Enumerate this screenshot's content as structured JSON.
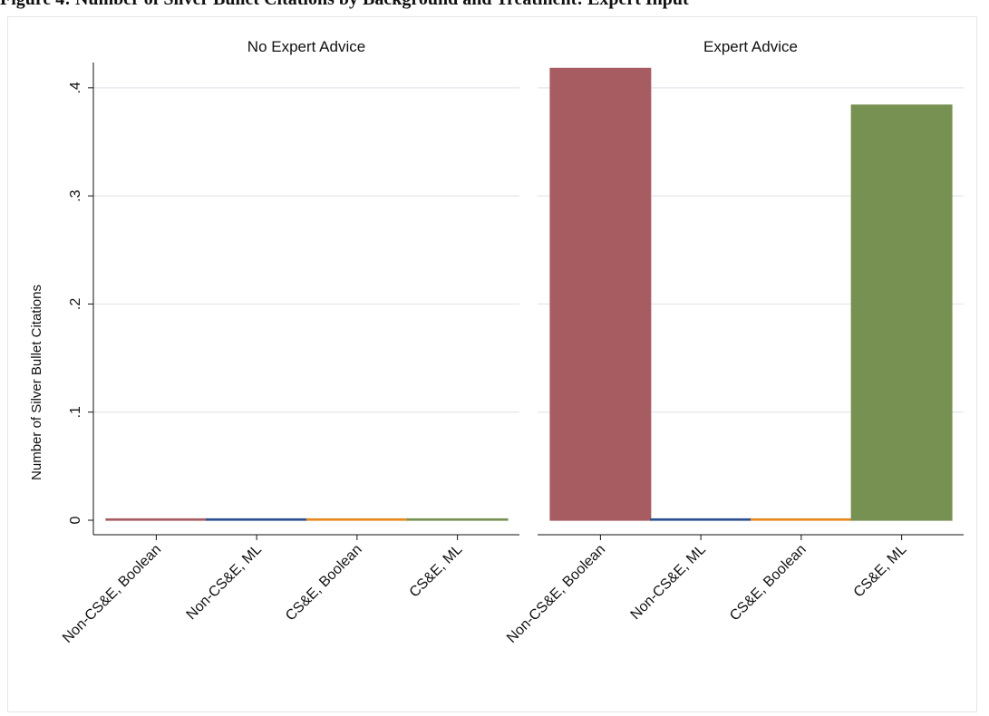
{
  "caption": "Figure 4: Number of Silver Bullet Citations by Background and Treatment: Expert Input",
  "colors": {
    "non_cse_boolean": "#a65c61",
    "non_cse_ml": "#2b5090",
    "cse_boolean": "#e5891f",
    "cse_ml": "#779153",
    "grid": "#e4e6ee",
    "axis": "#111111"
  },
  "chart_data": {
    "type": "bar",
    "ylabel": "Number of Silver Bullet Citations",
    "ylim": [
      0,
      0.42
    ],
    "yticks": [
      0,
      0.1,
      0.2,
      0.3,
      0.4
    ],
    "ytick_labels": [
      "0",
      ".1",
      ".2",
      ".3",
      ".4"
    ],
    "grid": true,
    "categories": [
      "Non-CS&E, Boolean",
      "Non-CS&E, ML",
      "CS&E, Boolean",
      "CS&E, ML"
    ],
    "panels": [
      {
        "title": "No Expert Advice",
        "values": [
          0,
          0,
          0,
          0
        ]
      },
      {
        "title": "Expert Advice",
        "values": [
          0.418,
          0,
          0,
          0.384
        ]
      }
    ]
  }
}
